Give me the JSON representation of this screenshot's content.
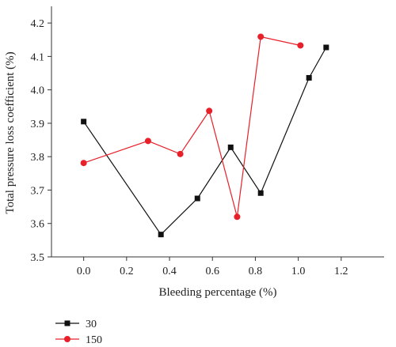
{
  "chart_data": {
    "type": "line",
    "title": "",
    "xlabel": "Bleeding percentage (%)",
    "ylabel": "Total pressure loss coefficient (%)",
    "xlim": [
      -0.15,
      1.4
    ],
    "ylim": [
      3.5,
      4.25
    ],
    "xticks": [
      0.0,
      0.2,
      0.4,
      0.6,
      0.8,
      1.0,
      1.2
    ],
    "xtick_labels": [
      "0.0",
      "0.2",
      "0.4",
      "0.6",
      "0.8",
      "1.0",
      "1.2"
    ],
    "yticks": [
      3.5,
      3.6,
      3.7,
      3.8,
      3.9,
      4.0,
      4.1,
      4.2
    ],
    "ytick_labels": [
      "3.5",
      "3.6",
      "3.7",
      "3.8",
      "3.9",
      "4.0",
      "4.1",
      "4.2"
    ],
    "legend_position": "bottom-left, below plot",
    "grid": false,
    "series": [
      {
        "name": "30",
        "color": "#111111",
        "marker": "square",
        "x": [
          0.0,
          0.36,
          0.53,
          0.685,
          0.825,
          1.05,
          1.13
        ],
        "y": [
          3.905,
          3.567,
          3.675,
          3.828,
          3.691,
          4.036,
          4.127
        ]
      },
      {
        "name": "150",
        "color": "#e8202a",
        "marker": "circle",
        "x": [
          0.0,
          0.3,
          0.45,
          0.585,
          0.715,
          0.825,
          1.01
        ],
        "y": [
          3.781,
          3.847,
          3.808,
          3.937,
          3.62,
          4.159,
          4.133
        ]
      }
    ]
  }
}
